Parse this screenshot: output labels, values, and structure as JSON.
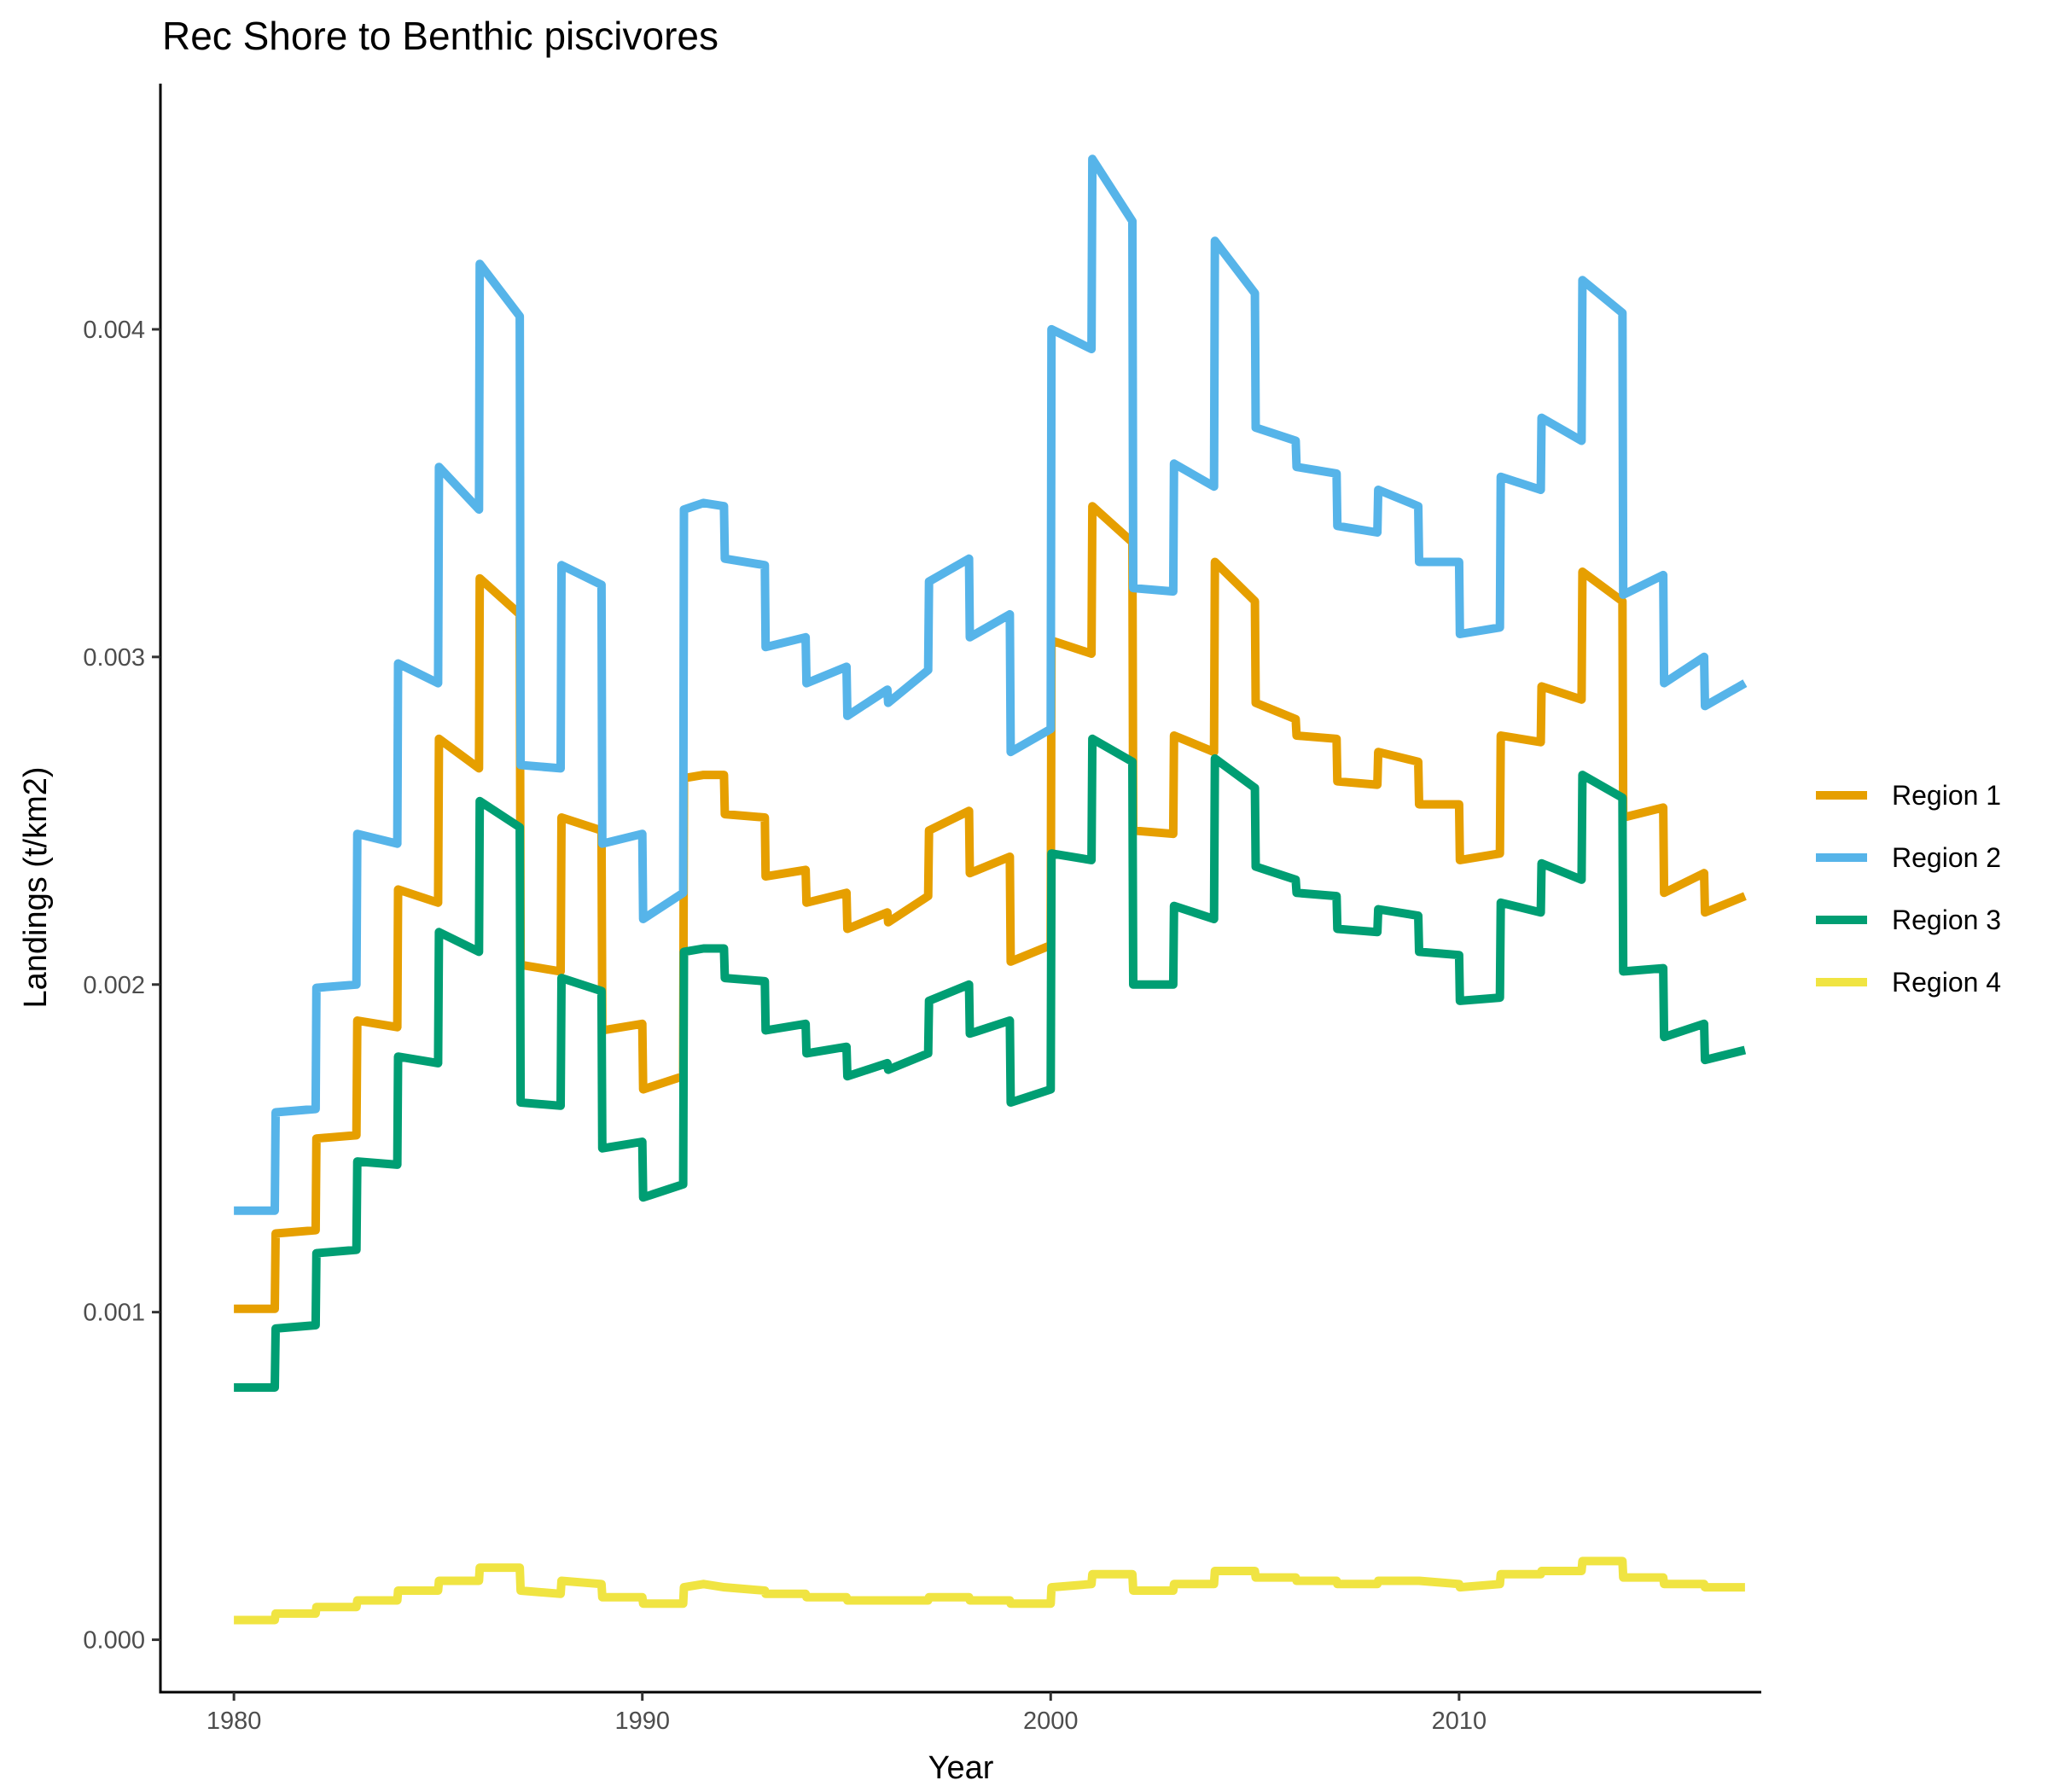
{
  "chart_data": {
    "type": "line",
    "title": "Rec Shore to Benthic piscivores",
    "xlabel": "Year",
    "ylabel": "Landings (t/km2)",
    "xlim": [
      1978.2,
      2017.4
    ],
    "ylim": [
      -0.00016,
      0.00475
    ],
    "x_ticks": [
      1980,
      1990,
      2000,
      2010
    ],
    "x_tick_labels": [
      "1980",
      "1990",
      "2000",
      "2010"
    ],
    "y_ticks": [
      0.0,
      0.001,
      0.002,
      0.003,
      0.004
    ],
    "y_tick_labels": [
      "0.000",
      "0.001",
      "0.002",
      "0.003",
      "0.004"
    ],
    "grid": false,
    "legend_position": "right",
    "series": [
      {
        "name": "Region 1",
        "color": "#E69F00",
        "x": [
          1980,
          1981,
          1981.02,
          1982,
          1982.02,
          1983,
          1983.02,
          1984,
          1984.02,
          1985,
          1985.02,
          1986,
          1986.02,
          1987,
          1987.02,
          1988,
          1988.02,
          1989,
          1989.02,
          1990,
          1990.02,
          1991,
          1991.02,
          1991.5,
          1992,
          1992.02,
          1993,
          1993.02,
          1994,
          1994.02,
          1995,
          1995.02,
          1996,
          1996.02,
          1997,
          1997.02,
          1998,
          1998.02,
          1999,
          1999.02,
          2000,
          2000.02,
          2001,
          2001.02,
          2002,
          2002.02,
          2003,
          2003.02,
          2004,
          2004.02,
          2005,
          2005.02,
          2006,
          2006.02,
          2007,
          2007.02,
          2008,
          2008.02,
          2009,
          2009.02,
          2010,
          2010.02,
          2011,
          2011.02,
          2012,
          2012.02,
          2013,
          2013.02,
          2014,
          2014.02,
          2015,
          2015.02,
          2016,
          2016.02,
          2017
        ],
        "y": [
          0.00101,
          0.00101,
          0.00124,
          0.00125,
          0.00153,
          0.00154,
          0.00189,
          0.00187,
          0.00229,
          0.00225,
          0.00275,
          0.00266,
          0.00324,
          0.00313,
          0.00206,
          0.00204,
          0.00251,
          0.00247,
          0.00186,
          0.00188,
          0.00168,
          0.00172,
          0.00263,
          0.00264,
          0.00264,
          0.00252,
          0.00251,
          0.00233,
          0.00235,
          0.00225,
          0.00228,
          0.00217,
          0.00222,
          0.00219,
          0.00227,
          0.00247,
          0.00253,
          0.00234,
          0.00239,
          0.00207,
          0.00212,
          0.00305,
          0.00301,
          0.00346,
          0.00335,
          0.00247,
          0.00246,
          0.00276,
          0.00271,
          0.00329,
          0.00317,
          0.00286,
          0.00281,
          0.00276,
          0.00275,
          0.00262,
          0.00261,
          0.00271,
          0.00268,
          0.00255,
          0.00255,
          0.00238,
          0.0024,
          0.00276,
          0.00274,
          0.00291,
          0.00287,
          0.00326,
          0.00317,
          0.00251,
          0.00254,
          0.00228,
          0.00234,
          0.00222,
          0.00227
        ]
      },
      {
        "name": "Region 2",
        "color": "#56B4E9",
        "x": [
          1980,
          1981,
          1981.02,
          1982,
          1982.02,
          1983,
          1983.02,
          1984,
          1984.02,
          1985,
          1985.02,
          1986,
          1986.02,
          1987,
          1987.02,
          1988,
          1988.02,
          1989,
          1989.02,
          1990,
          1990.02,
          1991,
          1991.02,
          1991.5,
          1992,
          1992.02,
          1993,
          1993.02,
          1994,
          1994.02,
          1995,
          1995.02,
          1996,
          1996.02,
          1997,
          1997.02,
          1998,
          1998.02,
          1999,
          1999.02,
          2000,
          2000.02,
          2001,
          2001.02,
          2002,
          2002.02,
          2003,
          2003.02,
          2004,
          2004.02,
          2005,
          2005.02,
          2006,
          2006.02,
          2007,
          2007.02,
          2008,
          2008.02,
          2009,
          2009.02,
          2010,
          2010.02,
          2011,
          2011.02,
          2012,
          2012.02,
          2013,
          2013.02,
          2014,
          2014.02,
          2015,
          2015.02,
          2016,
          2016.02,
          2017
        ],
        "y": [
          0.00131,
          0.00131,
          0.00161,
          0.00162,
          0.00199,
          0.002,
          0.00246,
          0.00243,
          0.00298,
          0.00292,
          0.00358,
          0.00345,
          0.0042,
          0.00404,
          0.00267,
          0.00266,
          0.00328,
          0.00322,
          0.00243,
          0.00246,
          0.0022,
          0.00228,
          0.00345,
          0.00347,
          0.00346,
          0.0033,
          0.00328,
          0.00303,
          0.00306,
          0.00292,
          0.00297,
          0.00282,
          0.0029,
          0.00286,
          0.00296,
          0.00323,
          0.0033,
          0.00306,
          0.00313,
          0.00271,
          0.00278,
          0.004,
          0.00394,
          0.00452,
          0.00433,
          0.00321,
          0.0032,
          0.00359,
          0.00352,
          0.00427,
          0.00411,
          0.0037,
          0.00366,
          0.00358,
          0.00356,
          0.0034,
          0.00338,
          0.00351,
          0.00346,
          0.00329,
          0.00329,
          0.00307,
          0.00309,
          0.00355,
          0.00351,
          0.00373,
          0.00366,
          0.00415,
          0.00405,
          0.00319,
          0.00325,
          0.00292,
          0.003,
          0.00285,
          0.00292
        ]
      },
      {
        "name": "Region 3",
        "color": "#009E73",
        "x": [
          1980,
          1981,
          1981.02,
          1982,
          1982.02,
          1983,
          1983.02,
          1984,
          1984.02,
          1985,
          1985.02,
          1986,
          1986.02,
          1987,
          1987.02,
          1988,
          1988.02,
          1989,
          1989.02,
          1990,
          1990.02,
          1991,
          1991.02,
          1991.5,
          1992,
          1992.02,
          1993,
          1993.02,
          1994,
          1994.02,
          1995,
          1995.02,
          1996,
          1996.02,
          1997,
          1997.02,
          1998,
          1998.02,
          1999,
          1999.02,
          2000,
          2000.02,
          2001,
          2001.02,
          2002,
          2002.02,
          2003,
          2003.02,
          2004,
          2004.02,
          2005,
          2005.02,
          2006,
          2006.02,
          2007,
          2007.02,
          2008,
          2008.02,
          2009,
          2009.02,
          2010,
          2010.02,
          2011,
          2011.02,
          2012,
          2012.02,
          2013,
          2013.02,
          2014,
          2014.02,
          2015,
          2015.02,
          2016,
          2016.02,
          2017
        ],
        "y": [
          0.00077,
          0.00077,
          0.00095,
          0.00096,
          0.00118,
          0.00119,
          0.00146,
          0.00145,
          0.00178,
          0.00176,
          0.00216,
          0.0021,
          0.00256,
          0.00248,
          0.00164,
          0.00163,
          0.00202,
          0.00198,
          0.0015,
          0.00152,
          0.00135,
          0.00139,
          0.0021,
          0.00211,
          0.00211,
          0.00202,
          0.00201,
          0.00186,
          0.00188,
          0.00179,
          0.00181,
          0.00172,
          0.00176,
          0.00174,
          0.00179,
          0.00195,
          0.002,
          0.00185,
          0.00189,
          0.00164,
          0.00168,
          0.0024,
          0.00238,
          0.00275,
          0.00268,
          0.002,
          0.002,
          0.00224,
          0.0022,
          0.00269,
          0.0026,
          0.00236,
          0.00232,
          0.00228,
          0.00227,
          0.00217,
          0.00216,
          0.00223,
          0.00221,
          0.0021,
          0.00209,
          0.00195,
          0.00196,
          0.00225,
          0.00222,
          0.00237,
          0.00232,
          0.00264,
          0.00257,
          0.00204,
          0.00205,
          0.00184,
          0.00188,
          0.00177,
          0.0018
        ]
      },
      {
        "name": "Region 4",
        "color": "#F0E442",
        "x": [
          1980,
          1981,
          1981.02,
          1982,
          1982.02,
          1983,
          1983.02,
          1984,
          1984.02,
          1985,
          1985.02,
          1986,
          1986.02,
          1987,
          1987.02,
          1988,
          1988.02,
          1989,
          1989.02,
          1990,
          1990.02,
          1991,
          1991.02,
          1991.5,
          1992,
          1992.02,
          1993,
          1993.02,
          1994,
          1994.02,
          1995,
          1995.02,
          1996,
          1996.02,
          1997,
          1997.02,
          1998,
          1998.02,
          1999,
          1999.02,
          2000,
          2000.02,
          2001,
          2001.02,
          2002,
          2002.02,
          2003,
          2003.02,
          2004,
          2004.02,
          2005,
          2005.02,
          2006,
          2006.02,
          2007,
          2007.02,
          2008,
          2008.02,
          2009,
          2009.02,
          2010,
          2010.02,
          2011,
          2011.02,
          2012,
          2012.02,
          2013,
          2013.02,
          2014,
          2014.02,
          2015,
          2015.02,
          2016,
          2016.02,
          2017
        ],
        "y": [
          6e-05,
          6e-05,
          8e-05,
          8e-05,
          0.0001,
          0.0001,
          0.00012,
          0.00012,
          0.00015,
          0.00015,
          0.00018,
          0.00018,
          0.00022,
          0.00022,
          0.00015,
          0.00014,
          0.00018,
          0.00017,
          0.00013,
          0.00013,
          0.00011,
          0.00011,
          0.00016,
          0.00017,
          0.00016,
          0.00016,
          0.00015,
          0.00014,
          0.00014,
          0.00013,
          0.00013,
          0.00012,
          0.00012,
          0.00012,
          0.00012,
          0.00013,
          0.00013,
          0.00012,
          0.00012,
          0.00011,
          0.00011,
          0.00016,
          0.00017,
          0.0002,
          0.0002,
          0.00015,
          0.00015,
          0.00017,
          0.00017,
          0.00021,
          0.00021,
          0.00019,
          0.00019,
          0.00018,
          0.00018,
          0.00017,
          0.00017,
          0.00018,
          0.00018,
          0.00018,
          0.00017,
          0.00016,
          0.00017,
          0.0002,
          0.0002,
          0.00021,
          0.00021,
          0.00024,
          0.00024,
          0.00019,
          0.00019,
          0.00017,
          0.00017,
          0.00016,
          0.00016
        ]
      }
    ]
  }
}
